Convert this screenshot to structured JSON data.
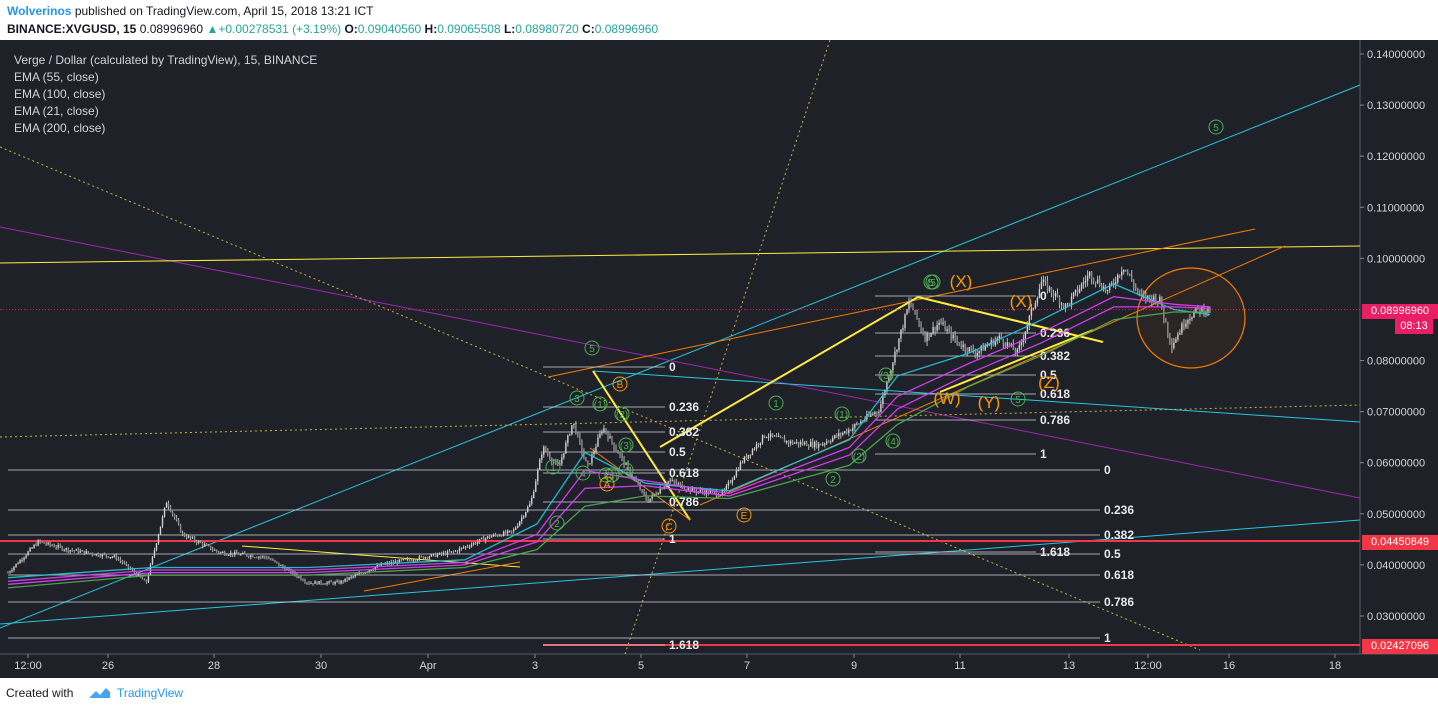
{
  "header": {
    "author": "Wolverinos",
    "published_text": "published on TradingView.com, April 15, 2018 13:21 ICT",
    "symbol": "BINANCE:XVGUSD, 15",
    "last": "0.08996960",
    "change": "+0.00278531 (+3.19%)",
    "o_label": "O:",
    "o": "0.09040560",
    "h_label": "H:",
    "h": "0.09065508",
    "l_label": "L:",
    "l": "0.08980720",
    "c_label": "C:",
    "c": "0.08996960"
  },
  "legend": {
    "title": "Verge / Dollar (calculated by TradingView), 15, BINANCE",
    "indicators": [
      "EMA (55, close)",
      "EMA (100, close)",
      "EMA (21, close)",
      "EMA (200, close)"
    ]
  },
  "price_tags": {
    "last": "0.08996960",
    "countdown": "08:13",
    "red_level_1": "0.04450849",
    "red_level_2": "0.02427096"
  },
  "footer": {
    "created_with": "Created with",
    "brand": "TradingView"
  },
  "colors": {
    "background": "#1f2128",
    "candle": "#b8b8b8",
    "ema21": "#26c6da",
    "ema55": "#e040fb",
    "ema100": "#e040fb",
    "ema200": "#4caf50",
    "fib": "#d1d4dc",
    "trend_yellow": "#ffeb3b",
    "trend_cyan": "#26c6da",
    "trend_orange": "#f57c00",
    "trend_purple": "#9c27b0",
    "wave_green": "#4caf50",
    "wave_orange": "#ff9800",
    "red_level": "#f23645"
  },
  "chart_data": {
    "type": "candlestick",
    "title": "Verge / Dollar (calculated by TradingView), 15, BINANCE",
    "y_ticks": [
      "0.14000000",
      "0.13000000",
      "0.12000000",
      "0.11000000",
      "0.10000000",
      "0.08000000",
      "0.07000000",
      "0.06000000",
      "0.05000000",
      "0.04000000",
      "0.03000000"
    ],
    "x_ticks": [
      "12:00",
      "26",
      "28",
      "30",
      "Apr",
      "3",
      "5",
      "7",
      "9",
      "11",
      "13",
      "12:00",
      "16",
      "18"
    ],
    "ylim": [
      0.0215,
      0.142
    ],
    "grid": false,
    "price_path": [
      [
        0.0,
        0.0385
      ],
      [
        2.5,
        0.0445
      ],
      [
        5.0,
        0.043
      ],
      [
        9.0,
        0.0415
      ],
      [
        11.5,
        0.0365
      ],
      [
        13.2,
        0.0525
      ],
      [
        14.5,
        0.046
      ],
      [
        17.5,
        0.0425
      ],
      [
        21.5,
        0.0415
      ],
      [
        25.0,
        0.0365
      ],
      [
        27.5,
        0.0365
      ],
      [
        31.0,
        0.04
      ],
      [
        34.5,
        0.0415
      ],
      [
        37.0,
        0.0425
      ],
      [
        40.0,
        0.0455
      ],
      [
        42.0,
        0.0465
      ],
      [
        43.5,
        0.0522
      ],
      [
        44.5,
        0.063
      ],
      [
        45.8,
        0.059
      ],
      [
        47.0,
        0.068
      ],
      [
        48.2,
        0.059
      ],
      [
        49.5,
        0.067
      ],
      [
        51.5,
        0.059
      ],
      [
        53.2,
        0.0525
      ],
      [
        55.0,
        0.0565
      ],
      [
        57.0,
        0.0545
      ],
      [
        59.5,
        0.054
      ],
      [
        61.0,
        0.06
      ],
      [
        63.0,
        0.0655
      ],
      [
        65.0,
        0.064
      ],
      [
        67.5,
        0.0635
      ],
      [
        70.0,
        0.0665
      ],
      [
        72.5,
        0.0705
      ],
      [
        73.8,
        0.0815
      ],
      [
        75.0,
        0.0915
      ],
      [
        76.3,
        0.0845
      ],
      [
        77.5,
        0.0875
      ],
      [
        79.0,
        0.0835
      ],
      [
        80.5,
        0.0815
      ],
      [
        82.5,
        0.0845
      ],
      [
        84.0,
        0.0815
      ],
      [
        86.0,
        0.0955
      ],
      [
        88.0,
        0.0905
      ],
      [
        90.0,
        0.097
      ],
      [
        91.5,
        0.0935
      ],
      [
        92.8,
        0.0985
      ],
      [
        94.2,
        0.0925
      ],
      [
        95.8,
        0.092
      ],
      [
        96.8,
        0.083
      ],
      [
        98.0,
        0.088
      ],
      [
        99.0,
        0.09
      ],
      [
        100.0,
        0.08997
      ]
    ],
    "emas": [
      {
        "name": "EMA (21, close)",
        "path": [
          [
            0,
            0.0375
          ],
          [
            12,
            0.0395
          ],
          [
            25,
            0.0395
          ],
          [
            38,
            0.041
          ],
          [
            44,
            0.048
          ],
          [
            48,
            0.062
          ],
          [
            53,
            0.056
          ],
          [
            60,
            0.0545
          ],
          [
            70,
            0.0645
          ],
          [
            74,
            0.077
          ],
          [
            80,
            0.0815
          ],
          [
            86,
            0.088
          ],
          [
            92,
            0.095
          ],
          [
            97,
            0.09
          ],
          [
            100,
            0.089
          ]
        ]
      },
      {
        "name": "EMA (55, close)",
        "path": [
          [
            0,
            0.0368
          ],
          [
            12,
            0.039
          ],
          [
            25,
            0.039
          ],
          [
            38,
            0.0405
          ],
          [
            44,
            0.046
          ],
          [
            48,
            0.0585
          ],
          [
            53,
            0.0565
          ],
          [
            60,
            0.054
          ],
          [
            70,
            0.063
          ],
          [
            74,
            0.073
          ],
          [
            80,
            0.0795
          ],
          [
            86,
            0.0855
          ],
          [
            92,
            0.0925
          ],
          [
            97,
            0.091
          ],
          [
            100,
            0.0905
          ]
        ]
      },
      {
        "name": "EMA (100, close)",
        "path": [
          [
            0,
            0.0362
          ],
          [
            12,
            0.0385
          ],
          [
            25,
            0.0385
          ],
          [
            38,
            0.04
          ],
          [
            44,
            0.0445
          ],
          [
            48,
            0.055
          ],
          [
            53,
            0.0555
          ],
          [
            60,
            0.0535
          ],
          [
            70,
            0.0615
          ],
          [
            74,
            0.0705
          ],
          [
            80,
            0.0775
          ],
          [
            86,
            0.0835
          ],
          [
            92,
            0.0905
          ],
          [
            97,
            0.0905
          ],
          [
            100,
            0.0902
          ]
        ]
      },
      {
        "name": "EMA (200, close)",
        "path": [
          [
            0,
            0.0355
          ],
          [
            12,
            0.038
          ],
          [
            25,
            0.038
          ],
          [
            38,
            0.0395
          ],
          [
            44,
            0.043
          ],
          [
            48,
            0.0515
          ],
          [
            53,
            0.0535
          ],
          [
            60,
            0.053
          ],
          [
            70,
            0.0595
          ],
          [
            74,
            0.0675
          ],
          [
            80,
            0.075
          ],
          [
            86,
            0.081
          ],
          [
            92,
            0.088
          ],
          [
            97,
            0.0895
          ],
          [
            100,
            0.0895
          ]
        ]
      }
    ],
    "fib_left_labels": [
      "0",
      "0.236",
      "0.382",
      "0.5",
      "0.618",
      "0.786",
      "1",
      "1.618"
    ],
    "fib_big_labels": [
      "0",
      "0.236",
      "0.382",
      "0.5",
      "0.618",
      "0.786",
      "1"
    ],
    "fib_right_labels": [
      "0",
      "0.236",
      "0.382",
      "0.5",
      "0.618",
      "0.786",
      "1",
      "1.618"
    ],
    "wave_labels_green": [
      "5",
      "3",
      "1",
      "4",
      "2",
      "5",
      "(3)",
      "(4)",
      "(5)",
      "(2)",
      "(1)",
      "2",
      "1",
      "(1)",
      "(2)",
      "(3)",
      "(4)",
      "2",
      "4",
      "5",
      "5"
    ],
    "wave_labels_orange": [
      "B",
      "A",
      "C",
      "E",
      "(X)",
      "(X)",
      "(W)",
      "(Y)",
      "(Z)"
    ]
  }
}
